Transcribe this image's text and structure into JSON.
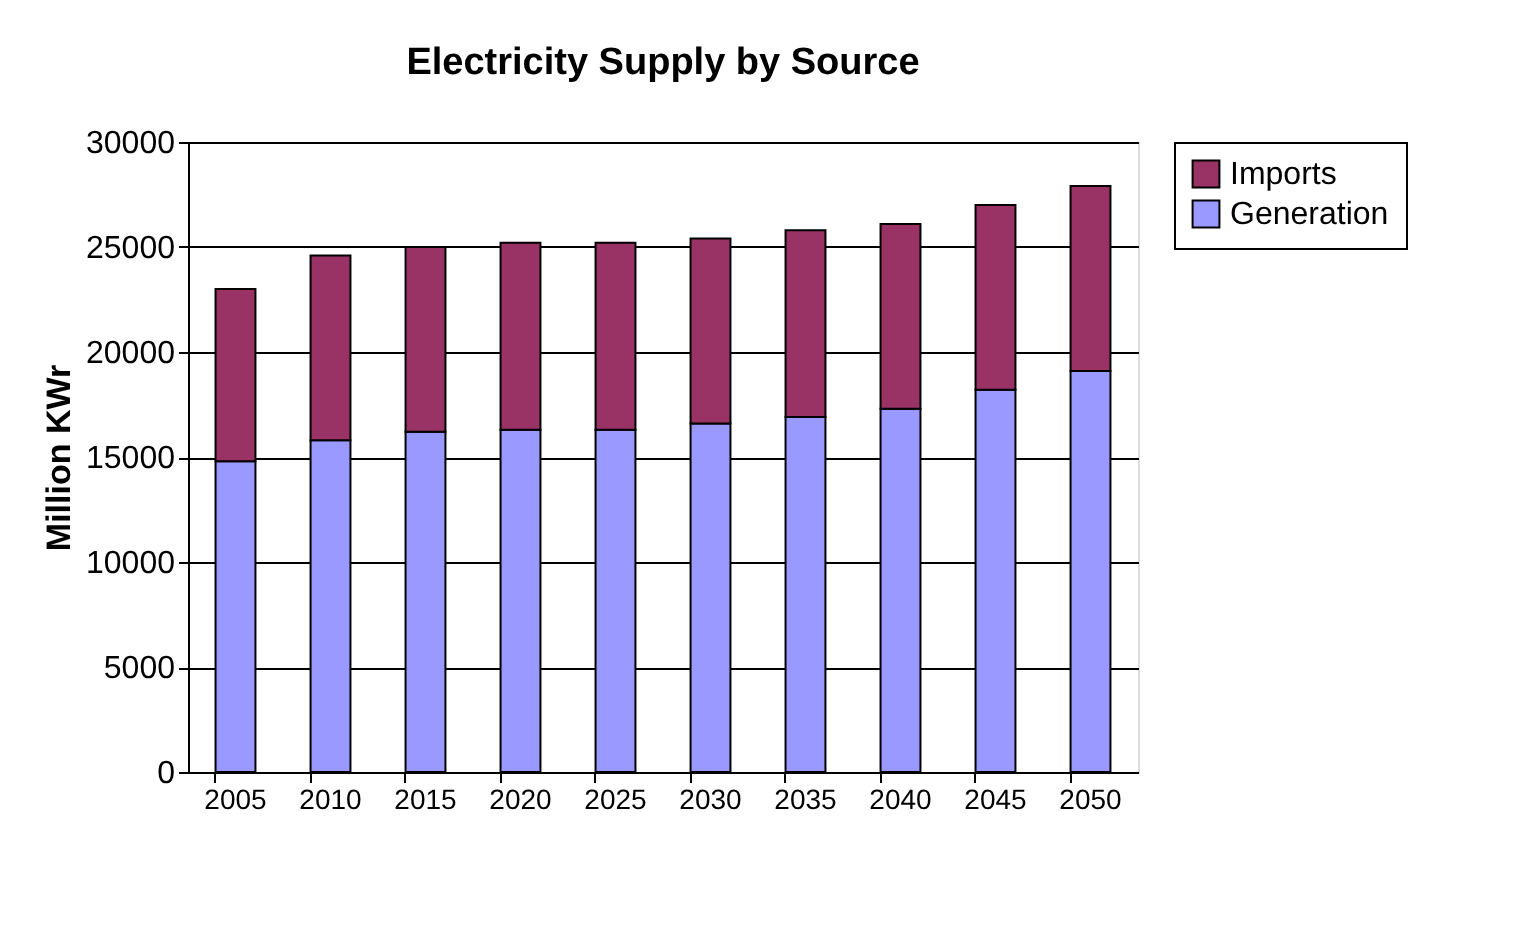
{
  "chart_data": {
    "type": "bar",
    "title": "Electricity Supply by Source",
    "ylabel": "Million KWr",
    "stacked": true,
    "legend": "right",
    "grid": "y",
    "categories": [
      "2005",
      "2010",
      "2015",
      "2020",
      "2025",
      "2030",
      "2035",
      "2040",
      "2045",
      "2050"
    ],
    "series": [
      {
        "name": "Generation",
        "color": "#9999ff",
        "values": [
          14800,
          15800,
          16200,
          16300,
          16300,
          16600,
          16900,
          17300,
          18200,
          19100
        ]
      },
      {
        "name": "Imports",
        "color": "#993366",
        "values": [
          8200,
          8800,
          8800,
          8900,
          8900,
          8800,
          8900,
          8800,
          8800,
          8800
        ]
      }
    ],
    "ylim": [
      0,
      30000
    ],
    "yticks": [
      0,
      5000,
      10000,
      15000,
      20000,
      25000,
      30000
    ]
  }
}
